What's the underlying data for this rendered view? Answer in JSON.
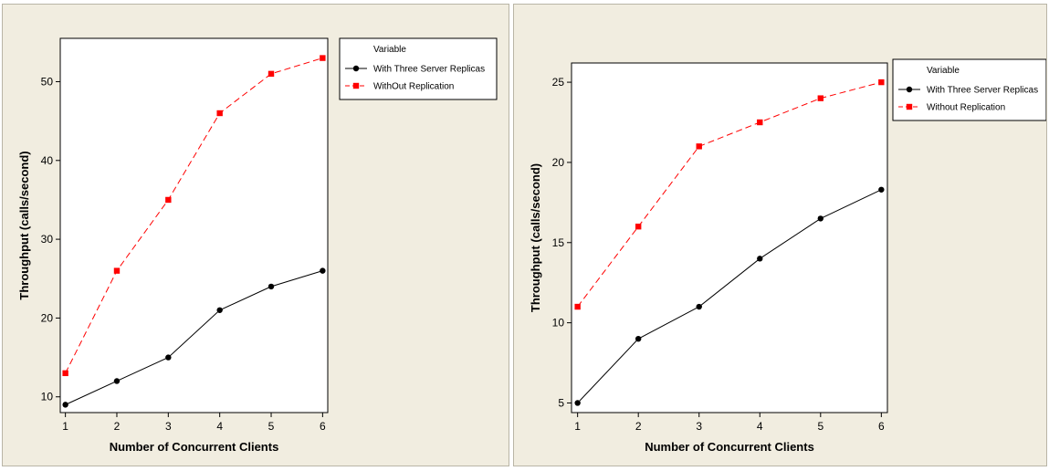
{
  "chart_data": [
    {
      "type": "line",
      "xlabel": "Number of Concurrent Clients",
      "ylabel": "Throughput (calls/second)",
      "x": [
        1,
        2,
        3,
        4,
        5,
        6
      ],
      "xlim": [
        0.9,
        6.1
      ],
      "ylim": [
        8,
        55.5
      ],
      "yticks": [
        10,
        20,
        30,
        40,
        50
      ],
      "legend_title": "Variable",
      "legend_position": "right",
      "series": [
        {
          "name": "With Three Server Replicas",
          "values": [
            9,
            12,
            15,
            21,
            24,
            26
          ],
          "color": "#000000",
          "marker": "circle",
          "line": "solid"
        },
        {
          "name": "WithOut Replication",
          "values": [
            13,
            26,
            35,
            46,
            51,
            53
          ],
          "color": "#ff0000",
          "marker": "square",
          "line": "dashed"
        }
      ]
    },
    {
      "type": "line",
      "xlabel": "Number of Concurrent Clients",
      "ylabel": "Throughput (calls/second)",
      "x": [
        1,
        2,
        3,
        4,
        5,
        6
      ],
      "xlim": [
        0.9,
        6.1
      ],
      "ylim": [
        4.4,
        26.2
      ],
      "yticks": [
        5,
        10,
        15,
        20,
        25
      ],
      "legend_title": "Variable",
      "legend_position": "right",
      "series": [
        {
          "name": "With Three Server Replicas",
          "values": [
            5,
            9,
            11,
            14,
            16.5,
            18.3
          ],
          "color": "#000000",
          "marker": "circle",
          "line": "solid"
        },
        {
          "name": "Without Replication",
          "values": [
            11,
            16,
            21,
            22.5,
            24,
            25
          ],
          "color": "#ff0000",
          "marker": "square",
          "line": "dashed"
        }
      ]
    }
  ]
}
